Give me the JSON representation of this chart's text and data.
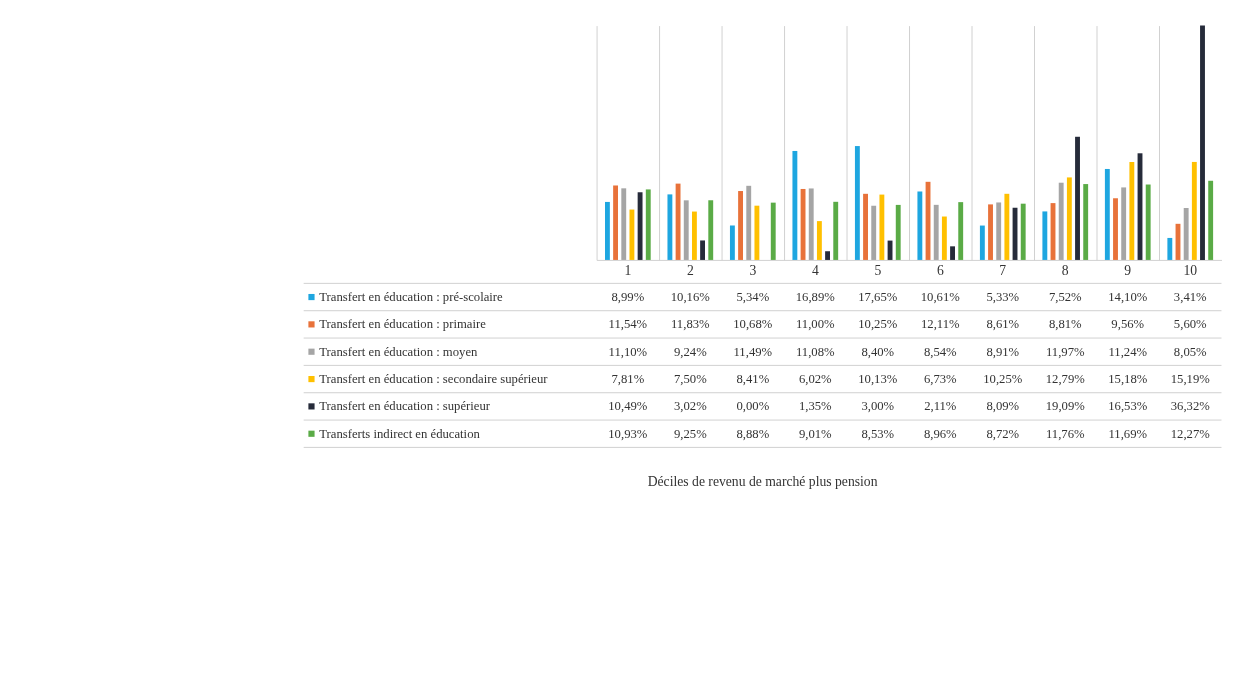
{
  "chart_data": {
    "type": "bar",
    "annotations": [
      "Déciles de revenu de marché plus pension"
    ],
    "categories": [
      "1",
      "2",
      "3",
      "4",
      "5",
      "6",
      "7",
      "8",
      "9",
      "10"
    ],
    "series": [
      {
        "name": "Transfert en éducation : pré-scolaire",
        "color": "#1ea6e0",
        "values": [
          8.99,
          10.16,
          5.34,
          16.89,
          17.65,
          10.61,
          5.33,
          7.52,
          14.1,
          3.41
        ],
        "value_labels": [
          "8,99%",
          "10,16%",
          "5,34%",
          "16,89%",
          "17,65%",
          "10,61%",
          "5,33%",
          "7,52%",
          "14,10%",
          "3,41%"
        ]
      },
      {
        "name": "Transfert en éducation : primaire",
        "color": "#e8723a",
        "values": [
          11.54,
          11.83,
          10.68,
          11.0,
          10.25,
          12.11,
          8.61,
          8.81,
          9.56,
          5.6
        ],
        "value_labels": [
          "11,54%",
          "11,83%",
          "10,68%",
          "11,00%",
          "10,25%",
          "12,11%",
          "8,61%",
          "8,81%",
          "9,56%",
          "5,60%"
        ]
      },
      {
        "name": "Transfert en éducation : moyen",
        "color": "#a5a5a5",
        "values": [
          11.1,
          9.24,
          11.49,
          11.08,
          8.4,
          8.54,
          8.91,
          11.97,
          11.24,
          8.05
        ],
        "value_labels": [
          "11,10%",
          "9,24%",
          "11,49%",
          "11,08%",
          "8,40%",
          "8,54%",
          "8,91%",
          "11,97%",
          "11,24%",
          "8,05%"
        ]
      },
      {
        "name": "Transfert en éducation : secondaire supérieur",
        "color": "#ffc000",
        "values": [
          7.81,
          7.5,
          8.41,
          6.02,
          10.13,
          6.73,
          10.25,
          12.79,
          15.18,
          15.19
        ],
        "value_labels": [
          "7,81%",
          "7,50%",
          "8,41%",
          "6,02%",
          "10,13%",
          "6,73%",
          "10,25%",
          "12,79%",
          "15,18%",
          "15,19%"
        ]
      },
      {
        "name": "Transfert en éducation : supérieur",
        "color": "#262b3a",
        "values": [
          10.49,
          3.02,
          0.0,
          1.35,
          3.0,
          2.11,
          8.09,
          19.09,
          16.53,
          36.32
        ],
        "value_labels": [
          "10,49%",
          "3,02%",
          "0,00%",
          "1,35%",
          "3,00%",
          "2,11%",
          "8,09%",
          "19,09%",
          "16,53%",
          "36,32%"
        ]
      },
      {
        "name": "Transferts indirect en éducation",
        "color": "#5aab46",
        "values": [
          10.93,
          9.25,
          8.88,
          9.01,
          8.53,
          8.96,
          8.72,
          11.76,
          11.69,
          12.27
        ],
        "value_labels": [
          "10,93%",
          "9,25%",
          "8,88%",
          "9,01%",
          "8,53%",
          "8,96%",
          "8,72%",
          "11,76%",
          "11,69%",
          "12,27%"
        ]
      }
    ],
    "grid": "x",
    "legend": "bottom left"
  }
}
